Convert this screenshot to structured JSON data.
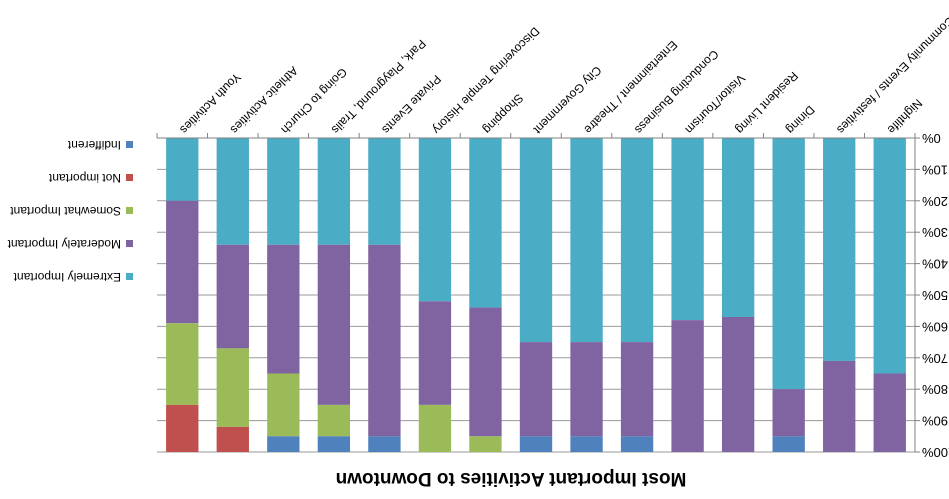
{
  "chart_data": {
    "type": "bar",
    "stacked": true,
    "orientation": "vertical",
    "image_rotated_180": true,
    "title": "Most Important Activities to Downtown",
    "xlabel": "",
    "ylabel": "",
    "ylim": [
      0,
      100
    ],
    "y_ticks": [
      "0%",
      "10%",
      "20%",
      "30%",
      "40%",
      "50%",
      "60%",
      "70%",
      "80%",
      "90%",
      "100%"
    ],
    "grid": true,
    "legend_position": "right",
    "categories": [
      "Nightlife",
      "Community Events / festivities",
      "Dining",
      "Resident Living",
      "Visitor/Tourism",
      "Conducting Business",
      "Entertainment / Theatre",
      "City Government",
      "Shopping",
      "Discovering Temple History",
      "Private Events",
      "Park, Playground, Trails",
      "Going to Church",
      "Athletic Activities",
      "Youth Activities"
    ],
    "series": [
      {
        "name": "Extremely Important",
        "color": "#4BACC6",
        "values": [
          75,
          71,
          80,
          57,
          58,
          65,
          65,
          65,
          54,
          52,
          34,
          34,
          34,
          34,
          20
        ]
      },
      {
        "name": "Moderately Important",
        "color": "#8064A2",
        "values": [
          25,
          29,
          15,
          43,
          42,
          30,
          30,
          30,
          41,
          33,
          61,
          51,
          41,
          33,
          39
        ]
      },
      {
        "name": "Somewhat Important",
        "color": "#9BBB59",
        "values": [
          0,
          0,
          0,
          0,
          0,
          0,
          0,
          0,
          5,
          15,
          0,
          10,
          20,
          25,
          26
        ]
      },
      {
        "name": "Not important",
        "color": "#C0504D",
        "values": [
          0,
          0,
          0,
          0,
          0,
          0,
          0,
          0,
          0,
          0,
          0,
          0,
          0,
          8,
          15
        ]
      },
      {
        "name": "Indifferent",
        "color": "#4F81BD",
        "values": [
          0,
          0,
          5,
          0,
          0,
          5,
          5,
          5,
          0,
          0,
          5,
          5,
          5,
          0,
          0
        ]
      }
    ]
  }
}
